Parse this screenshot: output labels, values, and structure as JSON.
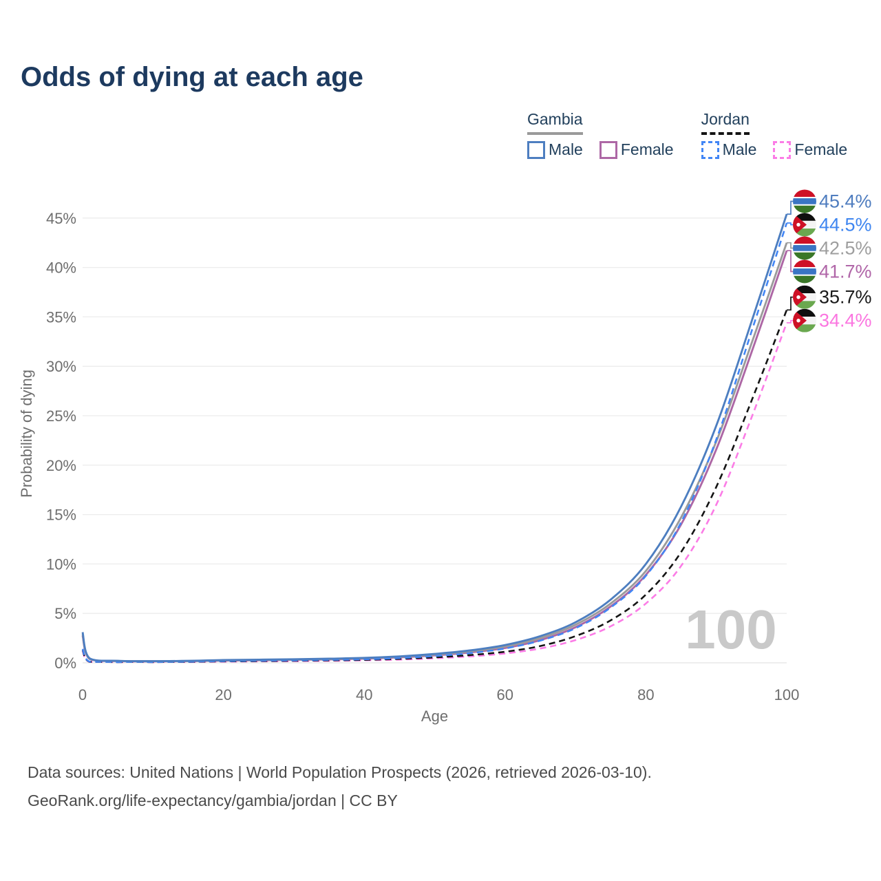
{
  "header": {
    "title": "Odds of dying at each age"
  },
  "legend": {
    "groups": [
      {
        "name": "Gambia",
        "underline_style": "solid",
        "underline_color": "#9a9a9a",
        "items": [
          {
            "label": "Male",
            "color": "#4d7ec0",
            "dashed": false
          },
          {
            "label": "Female",
            "color": "#ad67a5",
            "dashed": false
          }
        ]
      },
      {
        "name": "Jordan",
        "underline_style": "dashed",
        "underline_color": "#141414",
        "items": [
          {
            "label": "Male",
            "color": "#4286f5",
            "dashed": true
          },
          {
            "label": "Female",
            "color": "#fb7ce6",
            "dashed": true
          }
        ]
      }
    ]
  },
  "chart_data": {
    "type": "line",
    "title": "Odds of dying at each age",
    "xlabel": "Age",
    "ylabel": "Probability of dying",
    "xlim": [
      0,
      100
    ],
    "ylim": [
      0,
      47
    ],
    "x_ticks": [
      0,
      20,
      40,
      60,
      80,
      100
    ],
    "y_ticks": [
      0,
      5,
      10,
      15,
      20,
      25,
      30,
      35,
      40,
      45
    ],
    "y_tick_suffix": "%",
    "grid": "horizontal",
    "watermark": "100",
    "legend_position": "top-right",
    "series": [
      {
        "id": "gambia-male",
        "name": "Gambia Male",
        "country": "Gambia",
        "flag": "gambia",
        "color": "#4d7ec0",
        "label_color": "#4f7dbf",
        "dashed": false,
        "end_label": "45.4%",
        "points": [
          [
            0,
            3.1
          ],
          [
            1,
            0.45
          ],
          [
            5,
            0.2
          ],
          [
            10,
            0.17
          ],
          [
            15,
            0.2
          ],
          [
            20,
            0.28
          ],
          [
            25,
            0.32
          ],
          [
            30,
            0.36
          ],
          [
            35,
            0.42
          ],
          [
            40,
            0.5
          ],
          [
            45,
            0.65
          ],
          [
            50,
            0.9
          ],
          [
            55,
            1.25
          ],
          [
            60,
            1.8
          ],
          [
            65,
            2.7
          ],
          [
            70,
            4.1
          ],
          [
            75,
            6.4
          ],
          [
            80,
            10.0
          ],
          [
            85,
            15.8
          ],
          [
            90,
            24.0
          ],
          [
            95,
            34.5
          ],
          [
            100,
            45.4
          ]
        ]
      },
      {
        "id": "jordan-male",
        "name": "Jordan Male",
        "country": "Jordan",
        "flag": "jordan",
        "color": "#4286f5",
        "label_color": "#3f86f0",
        "dashed": true,
        "end_label": "44.5%",
        "points": [
          [
            0,
            1.4
          ],
          [
            1,
            0.12
          ],
          [
            5,
            0.08
          ],
          [
            10,
            0.08
          ],
          [
            15,
            0.12
          ],
          [
            20,
            0.18
          ],
          [
            25,
            0.22
          ],
          [
            30,
            0.25
          ],
          [
            35,
            0.3
          ],
          [
            40,
            0.36
          ],
          [
            45,
            0.48
          ],
          [
            50,
            0.68
          ],
          [
            55,
            0.98
          ],
          [
            60,
            1.45
          ],
          [
            65,
            2.25
          ],
          [
            70,
            3.5
          ],
          [
            75,
            5.6
          ],
          [
            80,
            8.8
          ],
          [
            85,
            14.2
          ],
          [
            90,
            22.6
          ],
          [
            95,
            33.5
          ],
          [
            100,
            44.5
          ]
        ]
      },
      {
        "id": "gambia-all",
        "name": "Gambia",
        "country": "Gambia",
        "flag": "gambia",
        "color": "#9b9b9b",
        "label_color": "#9e9e9e",
        "dashed": false,
        "end_label": "42.5%",
        "points": [
          [
            0,
            2.9
          ],
          [
            1,
            0.42
          ],
          [
            5,
            0.19
          ],
          [
            10,
            0.16
          ],
          [
            15,
            0.18
          ],
          [
            20,
            0.25
          ],
          [
            25,
            0.29
          ],
          [
            30,
            0.33
          ],
          [
            35,
            0.38
          ],
          [
            40,
            0.46
          ],
          [
            45,
            0.6
          ],
          [
            50,
            0.82
          ],
          [
            55,
            1.15
          ],
          [
            60,
            1.65
          ],
          [
            65,
            2.5
          ],
          [
            70,
            3.85
          ],
          [
            75,
            6.0
          ],
          [
            80,
            9.3
          ],
          [
            85,
            14.7
          ],
          [
            90,
            22.4
          ],
          [
            95,
            32.3
          ],
          [
            100,
            42.5
          ]
        ]
      },
      {
        "id": "gambia-female",
        "name": "Gambia Female",
        "country": "Gambia",
        "flag": "gambia",
        "color": "#ad67a5",
        "label_color": "#b066a8",
        "dashed": false,
        "end_label": "41.7%",
        "points": [
          [
            0,
            2.75
          ],
          [
            1,
            0.4
          ],
          [
            5,
            0.18
          ],
          [
            10,
            0.15
          ],
          [
            15,
            0.17
          ],
          [
            20,
            0.22
          ],
          [
            25,
            0.26
          ],
          [
            30,
            0.3
          ],
          [
            35,
            0.35
          ],
          [
            40,
            0.42
          ],
          [
            45,
            0.55
          ],
          [
            50,
            0.75
          ],
          [
            55,
            1.05
          ],
          [
            60,
            1.5
          ],
          [
            65,
            2.3
          ],
          [
            70,
            3.6
          ],
          [
            75,
            5.7
          ],
          [
            80,
            8.9
          ],
          [
            85,
            14.0
          ],
          [
            90,
            21.6
          ],
          [
            95,
            31.4
          ],
          [
            100,
            41.7
          ]
        ]
      },
      {
        "id": "jordan-all",
        "name": "Jordan",
        "country": "Jordan",
        "flag": "jordan",
        "color": "#141414",
        "label_color": "#1a1a1a",
        "dashed": true,
        "end_label": "35.7%",
        "points": [
          [
            0,
            1.3
          ],
          [
            1,
            0.1
          ],
          [
            5,
            0.07
          ],
          [
            10,
            0.07
          ],
          [
            15,
            0.1
          ],
          [
            20,
            0.15
          ],
          [
            25,
            0.18
          ],
          [
            30,
            0.21
          ],
          [
            35,
            0.25
          ],
          [
            40,
            0.3
          ],
          [
            45,
            0.4
          ],
          [
            50,
            0.55
          ],
          [
            55,
            0.78
          ],
          [
            60,
            1.12
          ],
          [
            65,
            1.7
          ],
          [
            70,
            2.7
          ],
          [
            75,
            4.3
          ],
          [
            80,
            6.9
          ],
          [
            85,
            11.2
          ],
          [
            90,
            17.8
          ],
          [
            95,
            26.5
          ],
          [
            100,
            35.7
          ]
        ]
      },
      {
        "id": "jordan-female",
        "name": "Jordan Female",
        "country": "Jordan",
        "flag": "jordan",
        "color": "#fb7ce6",
        "label_color": "#fb76e0",
        "dashed": true,
        "end_label": "34.4%",
        "points": [
          [
            0,
            1.2
          ],
          [
            1,
            0.09
          ],
          [
            5,
            0.06
          ],
          [
            10,
            0.06
          ],
          [
            15,
            0.08
          ],
          [
            20,
            0.12
          ],
          [
            25,
            0.15
          ],
          [
            30,
            0.17
          ],
          [
            35,
            0.2
          ],
          [
            40,
            0.25
          ],
          [
            45,
            0.33
          ],
          [
            50,
            0.46
          ],
          [
            55,
            0.65
          ],
          [
            60,
            0.95
          ],
          [
            65,
            1.45
          ],
          [
            70,
            2.3
          ],
          [
            75,
            3.7
          ],
          [
            80,
            6.0
          ],
          [
            85,
            9.8
          ],
          [
            90,
            16.0
          ],
          [
            95,
            24.8
          ],
          [
            100,
            34.4
          ]
        ]
      }
    ],
    "flag_colors": {
      "gambia": {
        "red": "#ce1126",
        "blue": "#3a75c4",
        "green": "#3a7728",
        "white": "#ffffff"
      },
      "jordan": {
        "black": "#0f0f0f",
        "white": "#f4f4f4",
        "green": "#6aa84f",
        "red": "#ce1126",
        "star": "#ffffff"
      }
    }
  },
  "footer": {
    "line1": "Data sources: United Nations | World Population Prospects (2026, retrieved 2026-03-10).",
    "line2": "GeoRank.org/life-expectancy/gambia/jordan | CC BY"
  }
}
